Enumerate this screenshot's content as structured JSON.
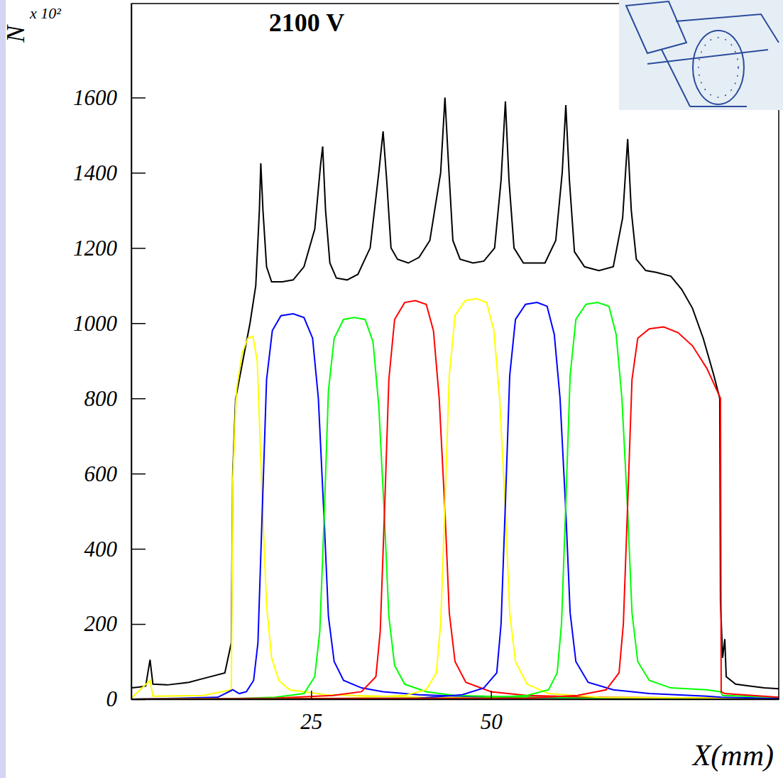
{
  "chart_data": {
    "type": "line",
    "title": "2100 V",
    "x_label": "X(mm)",
    "y_label": "N",
    "annotations": [
      {
        "text": "x 10²"
      }
    ],
    "xlim": [
      0,
      90
    ],
    "xticks": [
      25,
      50
    ],
    "ylim": [
      0,
      1850
    ],
    "yticks": [
      0,
      200,
      400,
      600,
      800,
      1000,
      1200,
      1400,
      1600
    ],
    "series": [
      {
        "color": "#000000",
        "x": [
          0,
          1,
          2,
          2.6,
          3,
          5,
          8,
          10,
          13,
          13.9,
          14.1,
          14.5,
          15.5,
          16.5,
          17.3,
          17.8,
          18,
          18.3,
          18.8,
          19.5,
          21,
          22.5,
          24,
          25.5,
          26.3,
          26.6,
          27,
          27.6,
          28.5,
          30,
          31.5,
          33.2,
          34.4,
          35,
          35.5,
          36.1,
          37,
          38.5,
          40,
          41.5,
          43,
          43.6,
          44.1,
          44.7,
          45.7,
          47.5,
          49,
          50.5,
          51.4,
          52,
          52.5,
          53.2,
          54.5,
          56,
          57.5,
          59,
          59.9,
          60.4,
          60.9,
          61.6,
          63,
          65,
          67,
          68.3,
          69,
          69.5,
          70.2,
          71.5,
          73,
          75,
          76.5,
          78,
          79.5,
          81,
          81.8,
          81.9,
          82.2,
          82.5,
          82.7,
          84,
          86,
          88,
          90
        ],
        "values": [
          30,
          32,
          35,
          105,
          40,
          38,
          45,
          55,
          70,
          150,
          600,
          800,
          900,
          1000,
          1100,
          1300,
          1425,
          1300,
          1150,
          1110,
          1110,
          1115,
          1150,
          1250,
          1420,
          1470,
          1300,
          1160,
          1120,
          1115,
          1130,
          1200,
          1400,
          1510,
          1380,
          1200,
          1170,
          1160,
          1175,
          1220,
          1400,
          1600,
          1420,
          1220,
          1170,
          1160,
          1165,
          1200,
          1380,
          1590,
          1380,
          1200,
          1160,
          1160,
          1160,
          1220,
          1400,
          1580,
          1380,
          1190,
          1150,
          1140,
          1150,
          1280,
          1490,
          1300,
          1170,
          1140,
          1135,
          1125,
          1090,
          1040,
          960,
          860,
          800,
          260,
          110,
          160,
          60,
          40,
          35,
          30,
          28
        ]
      },
      {
        "color": "#ffff00",
        "x": [
          0,
          2.6,
          3,
          10,
          13.9,
          14.1,
          14.6,
          15.4,
          16.2,
          16.9,
          17.5,
          18.2,
          18.8,
          19.5,
          20.5,
          22,
          27,
          40,
          60,
          90
        ],
        "values": [
          3,
          50,
          8,
          10,
          25,
          580,
          820,
          920,
          960,
          965,
          900,
          530,
          250,
          110,
          50,
          25,
          12,
          5,
          3,
          2
        ]
      },
      {
        "color": "#0000ff",
        "x": [
          0,
          12,
          14.1,
          15,
          16,
          17,
          17.6,
          18.2,
          18.8,
          19.6,
          20.8,
          22.5,
          24,
          25.2,
          26,
          26.8,
          27.4,
          28.2,
          29.5,
          32,
          35,
          40,
          50,
          65,
          90
        ],
        "values": [
          0,
          5,
          25,
          15,
          20,
          50,
          150,
          500,
          850,
          980,
          1020,
          1025,
          1015,
          960,
          800,
          480,
          220,
          100,
          50,
          30,
          20,
          12,
          5,
          3,
          2
        ]
      },
      {
        "color": "#00ff00",
        "x": [
          0,
          15,
          20,
          24,
          25.5,
          26.2,
          26.8,
          27.4,
          28.2,
          29.5,
          31,
          32.5,
          33.6,
          34.4,
          35.2,
          35.8,
          36.6,
          38,
          41,
          45,
          55,
          70,
          90
        ],
        "values": [
          0,
          2,
          5,
          15,
          60,
          180,
          480,
          820,
          960,
          1010,
          1015,
          1010,
          950,
          780,
          480,
          220,
          90,
          40,
          20,
          10,
          5,
          3,
          2
        ]
      },
      {
        "color": "#ff0000",
        "x": [
          0,
          20,
          28,
          32,
          34,
          34.6,
          35.2,
          35.8,
          36.6,
          38,
          39.5,
          41,
          42,
          42.8,
          43.6,
          44.2,
          45,
          46.5,
          50,
          55,
          65,
          90
        ],
        "values": [
          0,
          3,
          10,
          20,
          60,
          180,
          500,
          850,
          1010,
          1055,
          1060,
          1050,
          980,
          800,
          500,
          230,
          100,
          45,
          20,
          10,
          5,
          2
        ]
      },
      {
        "color": "#ffff00",
        "x": [
          0,
          30,
          38,
          41,
          42.4,
          43,
          43.6,
          44.2,
          45,
          46.4,
          48,
          49.4,
          50.4,
          51.2,
          52,
          52.6,
          53.4,
          55,
          58,
          65,
          90
        ],
        "values": [
          0,
          3,
          10,
          25,
          70,
          200,
          520,
          860,
          1020,
          1060,
          1065,
          1055,
          980,
          800,
          500,
          230,
          100,
          40,
          15,
          5,
          2
        ]
      },
      {
        "color": "#0000ff",
        "x": [
          0,
          40,
          46,
          49,
          50.8,
          51.4,
          52,
          52.6,
          53.4,
          54.8,
          56.4,
          57.8,
          58.8,
          59.6,
          60.4,
          61,
          61.8,
          63.5,
          67,
          72,
          80,
          82,
          90
        ],
        "values": [
          0,
          3,
          12,
          30,
          70,
          200,
          520,
          860,
          1010,
          1050,
          1055,
          1045,
          970,
          800,
          500,
          230,
          100,
          45,
          25,
          15,
          8,
          5,
          2
        ]
      },
      {
        "color": "#00ff00",
        "x": [
          0,
          48,
          55,
          58,
          59.2,
          59.8,
          60.4,
          61,
          61.8,
          63.2,
          64.8,
          66.4,
          67.4,
          68.2,
          69,
          69.6,
          70.4,
          72,
          75,
          80,
          81.9,
          82.2,
          90
        ],
        "values": [
          0,
          3,
          10,
          25,
          70,
          200,
          520,
          860,
          1010,
          1050,
          1055,
          1045,
          970,
          800,
          500,
          230,
          100,
          50,
          30,
          25,
          20,
          10,
          5
        ]
      },
      {
        "color": "#ff0000",
        "x": [
          0,
          55,
          62,
          66,
          67.8,
          68.4,
          69,
          69.6,
          70.4,
          72,
          74,
          76,
          78,
          80,
          81.2,
          81.9,
          82,
          82.5,
          90
        ],
        "values": [
          0,
          3,
          10,
          25,
          70,
          200,
          520,
          850,
          960,
          985,
          990,
          975,
          940,
          880,
          830,
          800,
          20,
          15,
          5
        ]
      }
    ]
  }
}
